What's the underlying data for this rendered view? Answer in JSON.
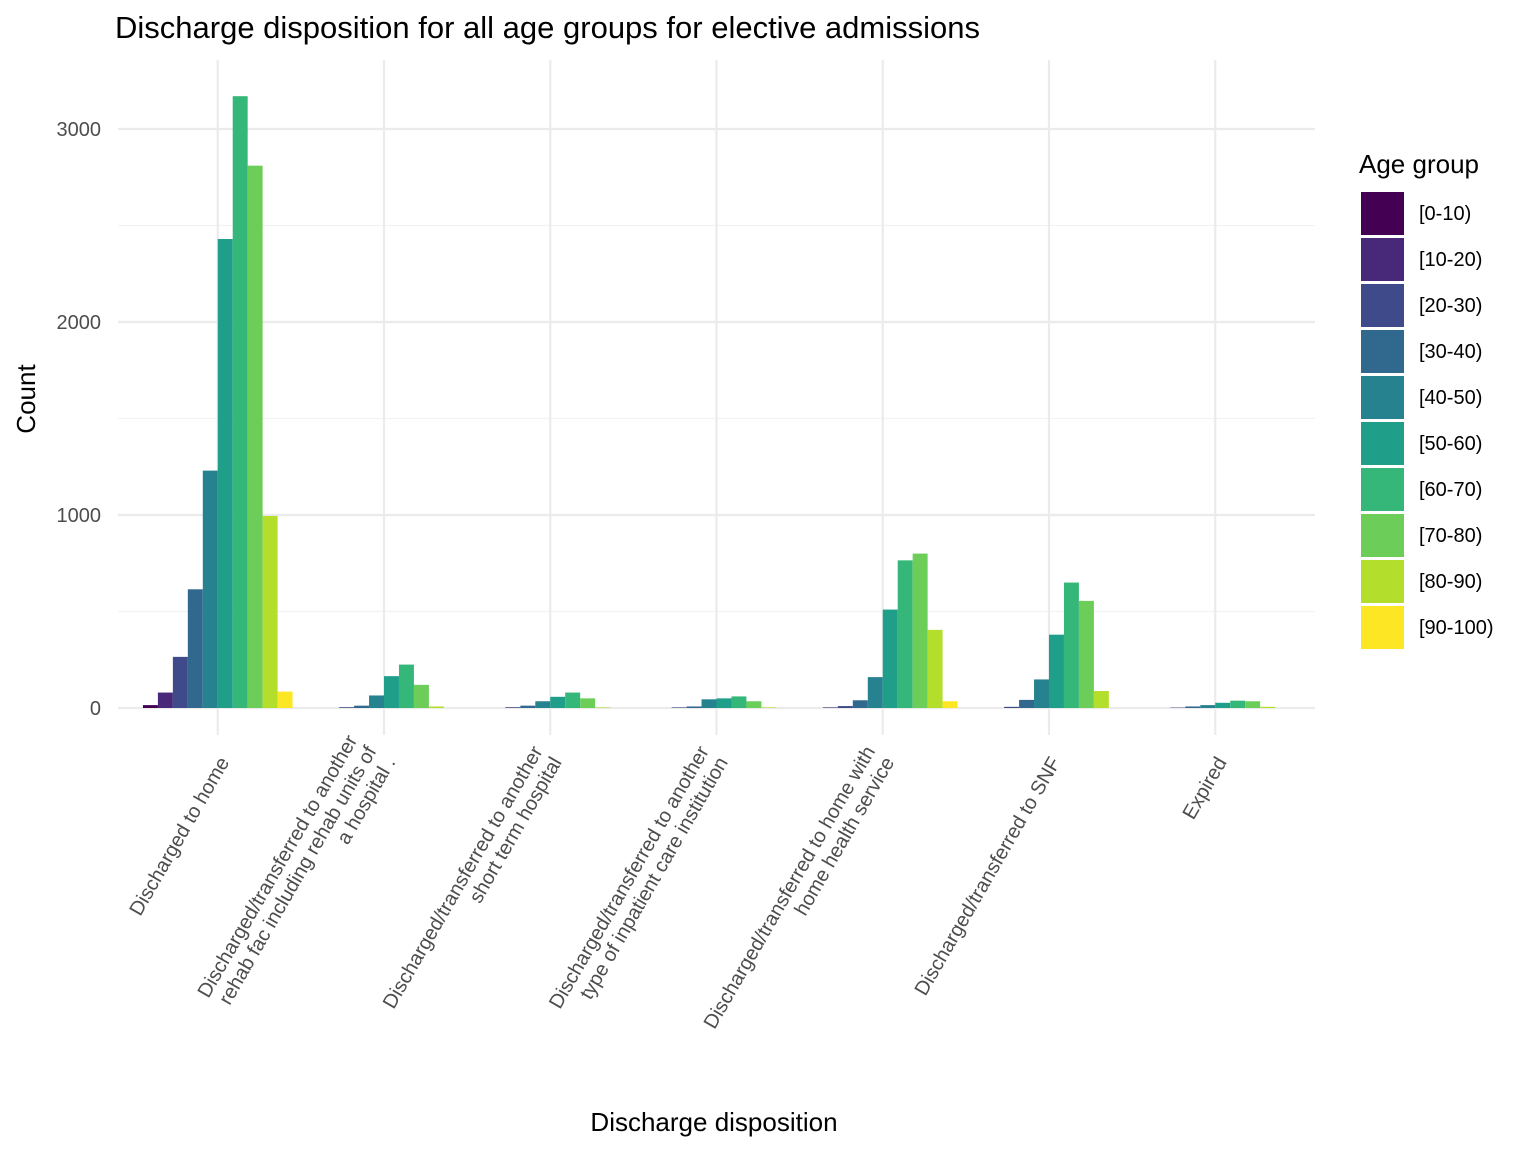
{
  "chart_data": {
    "type": "bar",
    "title": "Discharge disposition for all age groups for elective admissions",
    "xlabel": "Discharge disposition",
    "ylabel": "Count",
    "ylim": [
      -130,
      3340
    ],
    "yticks": [
      0,
      1000,
      2000,
      3000
    ],
    "grid": true,
    "legend_title": "Age group",
    "legend_position": "right",
    "categories": [
      [
        "Discharged to home"
      ],
      [
        "Discharged/transferred to another",
        "rehab fac including rehab units of",
        "a hospital ."
      ],
      [
        "Discharged/transferred to another",
        "short term hospital"
      ],
      [
        "Discharged/transferred to another",
        "type of inpatient care institution"
      ],
      [
        "Discharged/transferred to home with",
        "home health service"
      ],
      [
        "Discharged/transferred to SNF"
      ],
      [
        "Expired"
      ]
    ],
    "series": [
      {
        "name": "[0-10)",
        "color": "#440154",
        "values": [
          15,
          0,
          0,
          0,
          0,
          0,
          0
        ]
      },
      {
        "name": "[10-20)",
        "color": "#482878",
        "values": [
          80,
          0,
          0,
          0,
          3,
          0,
          0
        ]
      },
      {
        "name": "[20-30)",
        "color": "#3E4A89",
        "values": [
          265,
          4,
          4,
          3,
          10,
          6,
          2
        ]
      },
      {
        "name": "[30-40)",
        "color": "#31688E",
        "values": [
          615,
          12,
          12,
          8,
          40,
          42,
          8
        ]
      },
      {
        "name": "[40-50)",
        "color": "#26828E",
        "values": [
          1230,
          65,
          35,
          45,
          160,
          148,
          15
        ]
      },
      {
        "name": "[50-60)",
        "color": "#1F9E89",
        "values": [
          2430,
          165,
          58,
          50,
          510,
          380,
          27
        ]
      },
      {
        "name": "[60-70)",
        "color": "#35B779",
        "values": [
          3170,
          225,
          80,
          60,
          765,
          650,
          38
        ]
      },
      {
        "name": "[70-80)",
        "color": "#6DCD59",
        "values": [
          2810,
          120,
          50,
          35,
          800,
          555,
          35
        ]
      },
      {
        "name": "[80-90)",
        "color": "#B4DE2C",
        "values": [
          995,
          8,
          3,
          3,
          405,
          88,
          6
        ]
      },
      {
        "name": "[90-100)",
        "color": "#FDE725",
        "values": [
          85,
          0,
          0,
          0,
          35,
          0,
          0
        ]
      }
    ]
  }
}
